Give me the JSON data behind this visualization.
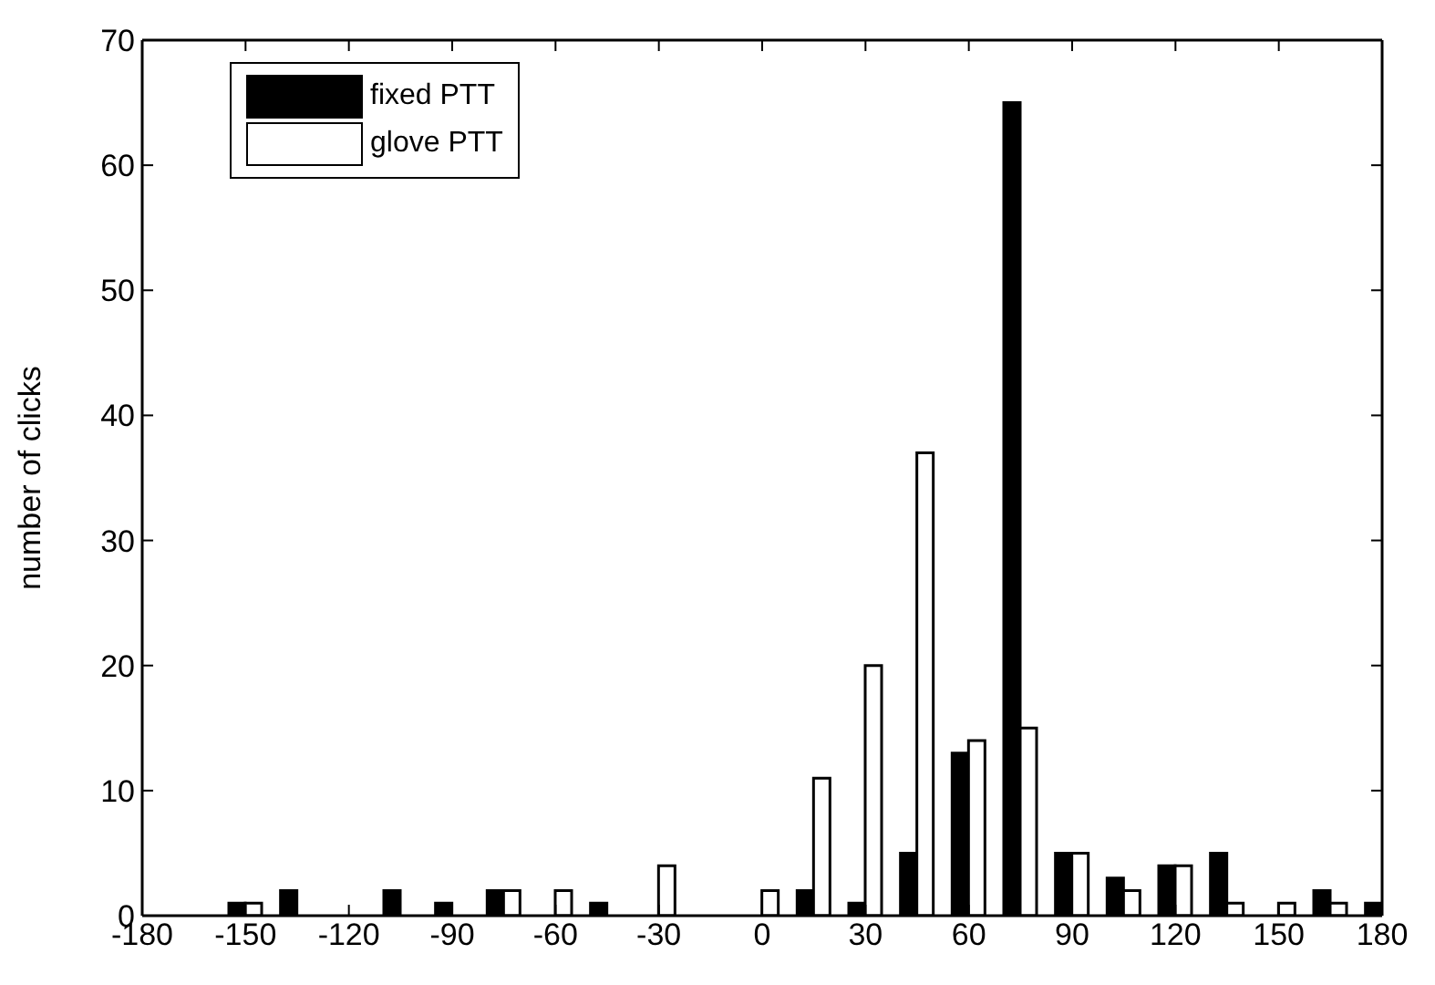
{
  "chart_data": {
    "type": "bar",
    "ylabel": "number of clicks",
    "x": [
      -180,
      -165,
      -150,
      -135,
      -120,
      -105,
      -90,
      -75,
      -60,
      -45,
      -30,
      -15,
      0,
      15,
      30,
      45,
      60,
      75,
      90,
      105,
      120,
      135,
      150,
      165,
      180
    ],
    "series": [
      {
        "name": "fixed PTT",
        "color": "#000000",
        "values": [
          0,
          0,
          1,
          2,
          0,
          2,
          1,
          2,
          0,
          1,
          0,
          0,
          0,
          2,
          1,
          5,
          13,
          65,
          5,
          3,
          4,
          5,
          0,
          2,
          1
        ]
      },
      {
        "name": "glove PTT",
        "color": "#ffffff",
        "values": [
          0,
          0,
          1,
          0,
          0,
          0,
          0,
          2,
          2,
          0,
          4,
          0,
          2,
          11,
          20,
          37,
          14,
          15,
          5,
          2,
          4,
          1,
          1,
          1,
          0
        ]
      }
    ],
    "xlim": [
      -180,
      180
    ],
    "xticks": [
      -180,
      -150,
      -120,
      -90,
      -60,
      -30,
      0,
      30,
      60,
      90,
      120,
      150,
      180
    ],
    "ylim": [
      0,
      70
    ],
    "yticks": [
      0,
      10,
      20,
      30,
      40,
      50,
      60,
      70
    ],
    "grid": false,
    "legend": "top left"
  }
}
